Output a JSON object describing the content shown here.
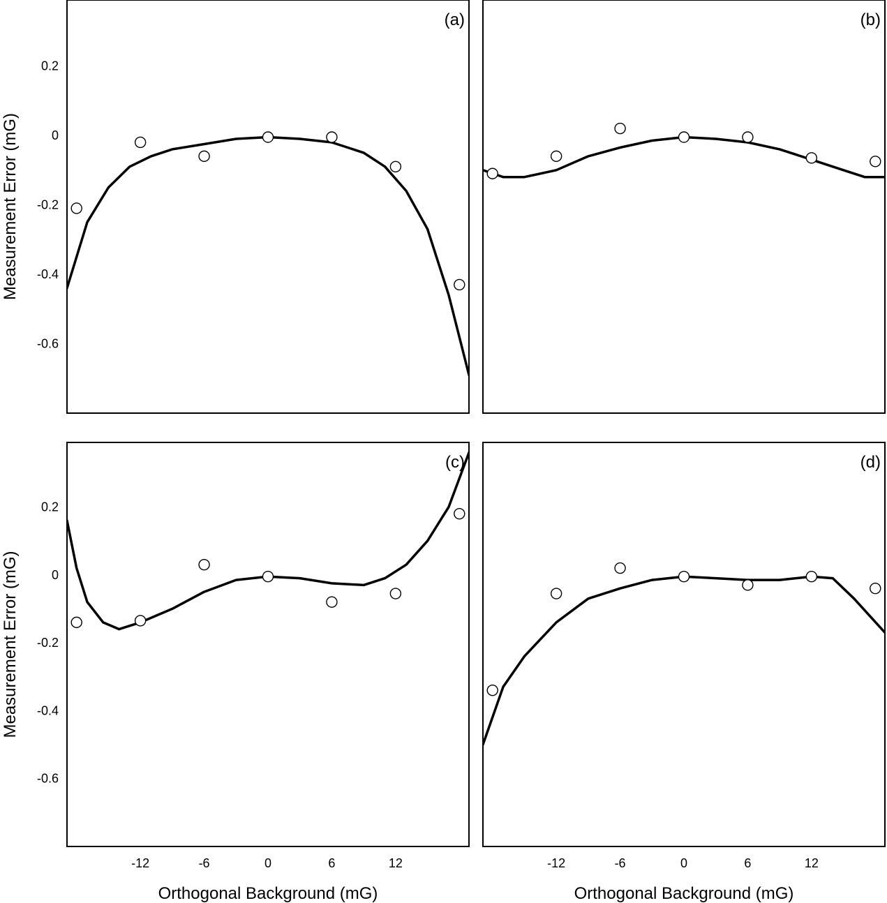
{
  "chart_data": [
    {
      "type": "scatter",
      "panel_label": "(a)",
      "xlabel": "",
      "ylabel": "Measurement Error (mG)",
      "x_ticks": [],
      "y_ticks": [
        0.2,
        0,
        -0.2,
        -0.4,
        -0.6
      ],
      "xlim": [
        -18.9,
        18.9
      ],
      "ylim": [
        -0.8,
        0.39
      ],
      "points": [
        {
          "x": -18,
          "y": -0.21
        },
        {
          "x": -12,
          "y": -0.02
        },
        {
          "x": -6,
          "y": -0.06
        },
        {
          "x": 0,
          "y": -0.005
        },
        {
          "x": 6,
          "y": -0.005
        },
        {
          "x": 12,
          "y": -0.09
        },
        {
          "x": 18,
          "y": -0.43
        }
      ],
      "curve": [
        {
          "x": -18.9,
          "y": -0.44
        },
        {
          "x": -17,
          "y": -0.25
        },
        {
          "x": -15,
          "y": -0.15
        },
        {
          "x": -13,
          "y": -0.09
        },
        {
          "x": -11,
          "y": -0.06
        },
        {
          "x": -9,
          "y": -0.04
        },
        {
          "x": -6,
          "y": -0.025
        },
        {
          "x": -3,
          "y": -0.01
        },
        {
          "x": 0,
          "y": -0.005
        },
        {
          "x": 3,
          "y": -0.01
        },
        {
          "x": 6,
          "y": -0.02
        },
        {
          "x": 9,
          "y": -0.05
        },
        {
          "x": 11,
          "y": -0.09
        },
        {
          "x": 13,
          "y": -0.16
        },
        {
          "x": 15,
          "y": -0.27
        },
        {
          "x": 17,
          "y": -0.46
        },
        {
          "x": 18.9,
          "y": -0.69
        }
      ]
    },
    {
      "type": "scatter",
      "panel_label": "(b)",
      "xlabel": "",
      "ylabel": "",
      "x_ticks": [],
      "y_ticks": [],
      "xlim": [
        -18.9,
        18.9
      ],
      "ylim": [
        -0.8,
        0.39
      ],
      "points": [
        {
          "x": -18,
          "y": -0.11
        },
        {
          "x": -12,
          "y": -0.06
        },
        {
          "x": -6,
          "y": 0.02
        },
        {
          "x": 0,
          "y": -0.005
        },
        {
          "x": 6,
          "y": -0.005
        },
        {
          "x": 12,
          "y": -0.065
        },
        {
          "x": 18,
          "y": -0.075
        }
      ],
      "curve": [
        {
          "x": -18.9,
          "y": -0.1
        },
        {
          "x": -17,
          "y": -0.12
        },
        {
          "x": -15,
          "y": -0.12
        },
        {
          "x": -12,
          "y": -0.1
        },
        {
          "x": -9,
          "y": -0.06
        },
        {
          "x": -6,
          "y": -0.035
        },
        {
          "x": -3,
          "y": -0.015
        },
        {
          "x": 0,
          "y": -0.005
        },
        {
          "x": 3,
          "y": -0.01
        },
        {
          "x": 6,
          "y": -0.02
        },
        {
          "x": 9,
          "y": -0.04
        },
        {
          "x": 12,
          "y": -0.07
        },
        {
          "x": 15,
          "y": -0.1
        },
        {
          "x": 17,
          "y": -0.12
        },
        {
          "x": 18.9,
          "y": -0.12
        }
      ]
    },
    {
      "type": "scatter",
      "panel_label": "(c)",
      "xlabel": "Orthogonal Background (mG)",
      "ylabel": "Measurement Error (mG)",
      "x_ticks": [
        -12,
        -6,
        0,
        6,
        12
      ],
      "y_ticks": [
        0.2,
        0,
        -0.2,
        -0.4,
        -0.6
      ],
      "xlim": [
        -18.9,
        18.9
      ],
      "ylim": [
        -0.8,
        0.39
      ],
      "points": [
        {
          "x": -18,
          "y": -0.14
        },
        {
          "x": -12,
          "y": -0.135
        },
        {
          "x": -6,
          "y": 0.03
        },
        {
          "x": 0,
          "y": -0.005
        },
        {
          "x": 6,
          "y": -0.08
        },
        {
          "x": 12,
          "y": -0.055
        },
        {
          "x": 18,
          "y": 0.18
        }
      ],
      "curve": [
        {
          "x": -18.9,
          "y": 0.16
        },
        {
          "x": -18,
          "y": 0.02
        },
        {
          "x": -17,
          "y": -0.08
        },
        {
          "x": -15.5,
          "y": -0.14
        },
        {
          "x": -14,
          "y": -0.16
        },
        {
          "x": -12,
          "y": -0.14
        },
        {
          "x": -9,
          "y": -0.1
        },
        {
          "x": -6,
          "y": -0.05
        },
        {
          "x": -3,
          "y": -0.015
        },
        {
          "x": 0,
          "y": -0.005
        },
        {
          "x": 3,
          "y": -0.01
        },
        {
          "x": 6,
          "y": -0.025
        },
        {
          "x": 9,
          "y": -0.03
        },
        {
          "x": 11,
          "y": -0.01
        },
        {
          "x": 13,
          "y": 0.03
        },
        {
          "x": 15,
          "y": 0.1
        },
        {
          "x": 17,
          "y": 0.2
        },
        {
          "x": 18.9,
          "y": 0.36
        }
      ]
    },
    {
      "type": "scatter",
      "panel_label": "(d)",
      "xlabel": "Orthogonal Background (mG)",
      "ylabel": "",
      "x_ticks": [
        -12,
        -6,
        0,
        6,
        12
      ],
      "y_ticks": [],
      "xlim": [
        -18.9,
        18.9
      ],
      "ylim": [
        -0.8,
        0.39
      ],
      "points": [
        {
          "x": -18,
          "y": -0.34
        },
        {
          "x": -12,
          "y": -0.055
        },
        {
          "x": -6,
          "y": 0.02
        },
        {
          "x": 0,
          "y": -0.005
        },
        {
          "x": 6,
          "y": -0.03
        },
        {
          "x": 12,
          "y": -0.005
        },
        {
          "x": 18,
          "y": -0.04
        }
      ],
      "curve": [
        {
          "x": -18.9,
          "y": -0.5
        },
        {
          "x": -17,
          "y": -0.33
        },
        {
          "x": -15,
          "y": -0.24
        },
        {
          "x": -12,
          "y": -0.14
        },
        {
          "x": -9,
          "y": -0.07
        },
        {
          "x": -6,
          "y": -0.04
        },
        {
          "x": -3,
          "y": -0.015
        },
        {
          "x": 0,
          "y": -0.005
        },
        {
          "x": 3,
          "y": -0.01
        },
        {
          "x": 6,
          "y": -0.015
        },
        {
          "x": 9,
          "y": -0.015
        },
        {
          "x": 12,
          "y": -0.005
        },
        {
          "x": 14,
          "y": -0.01
        },
        {
          "x": 16,
          "y": -0.07
        },
        {
          "x": 18.9,
          "y": -0.17
        }
      ]
    }
  ]
}
